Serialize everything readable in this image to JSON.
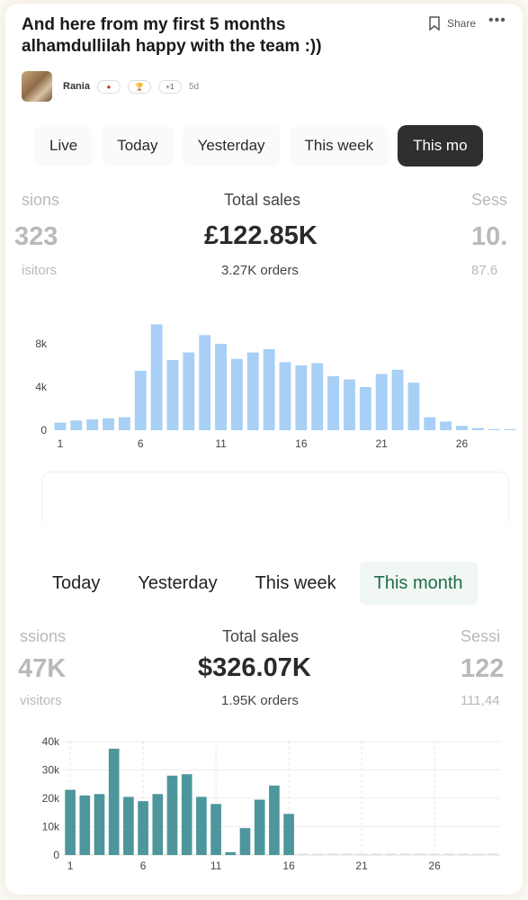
{
  "post": {
    "title": "And here from my first 5 months alhamdullilah happy with the team :))",
    "share_label": "Share",
    "more_label": "•••",
    "author": "Rania",
    "badges": [
      "●",
      "🏆",
      "+1"
    ],
    "age": "5d"
  },
  "dashboard1": {
    "tabs": [
      "Live",
      "Today",
      "Yesterday",
      "This week",
      "This mo"
    ],
    "active_tab_index": 4,
    "metrics": {
      "left": {
        "label": "sions",
        "value": "323",
        "sub": "isitors"
      },
      "center": {
        "label": "Total sales",
        "value": "£122.85K",
        "sub": "3.27K orders"
      },
      "right": {
        "label": "Sess",
        "value": "10.",
        "sub": "87.6"
      }
    }
  },
  "dashboard2": {
    "tabs": [
      "Today",
      "Yesterday",
      "This week",
      "This month"
    ],
    "active_tab_index": 3,
    "metrics": {
      "left": {
        "label": "ssions",
        "value": "47K",
        "sub": "visitors"
      },
      "center": {
        "label": "Total sales",
        "value": "$326.07K",
        "sub": "1.95K orders"
      },
      "right": {
        "label": "Sessi",
        "value": "122",
        "sub": "111,44"
      }
    }
  },
  "chart_data": [
    {
      "type": "bar",
      "color": "#a8cff5",
      "x": [
        1,
        2,
        3,
        4,
        5,
        6,
        7,
        8,
        9,
        10,
        11,
        12,
        13,
        14,
        15,
        16,
        17,
        18,
        19,
        20,
        21,
        22,
        23,
        24,
        25,
        26,
        27,
        28,
        29
      ],
      "values": [
        700,
        900,
        1000,
        1100,
        1200,
        5500,
        9800,
        6500,
        7200,
        8800,
        8000,
        6600,
        7200,
        7500,
        6300,
        6000,
        6200,
        5000,
        4700,
        4000,
        5200,
        5600,
        4400,
        1200,
        800,
        400,
        200,
        80,
        60
      ],
      "yticks": [
        "0",
        "4k",
        "8k"
      ],
      "ytick_values": [
        0,
        4000,
        8000
      ],
      "xticks": [
        "1",
        "6",
        "11",
        "16",
        "21",
        "26"
      ],
      "ylim": [
        0,
        10500
      ],
      "grid": false
    },
    {
      "type": "bar",
      "color": "#4d969b",
      "x": [
        1,
        2,
        3,
        4,
        5,
        6,
        7,
        8,
        9,
        10,
        11,
        12,
        13,
        14,
        15,
        16,
        17,
        18,
        19,
        20,
        21,
        22,
        23,
        24,
        25,
        26,
        27,
        28,
        29,
        30
      ],
      "values": [
        23000,
        21000,
        21500,
        37500,
        20500,
        19000,
        21500,
        28000,
        28500,
        20500,
        18000,
        1000,
        9500,
        19500,
        24500,
        14500,
        0,
        0,
        0,
        0,
        0,
        0,
        0,
        0,
        0,
        0,
        0,
        0,
        0,
        0
      ],
      "yticks": [
        "0",
        "10k",
        "20k",
        "30k",
        "40k"
      ],
      "ytick_values": [
        0,
        10000,
        20000,
        30000,
        40000
      ],
      "xticks": [
        "1",
        "6",
        "11",
        "16",
        "21",
        "26"
      ],
      "ylim": [
        0,
        40000
      ],
      "grid": true
    }
  ]
}
